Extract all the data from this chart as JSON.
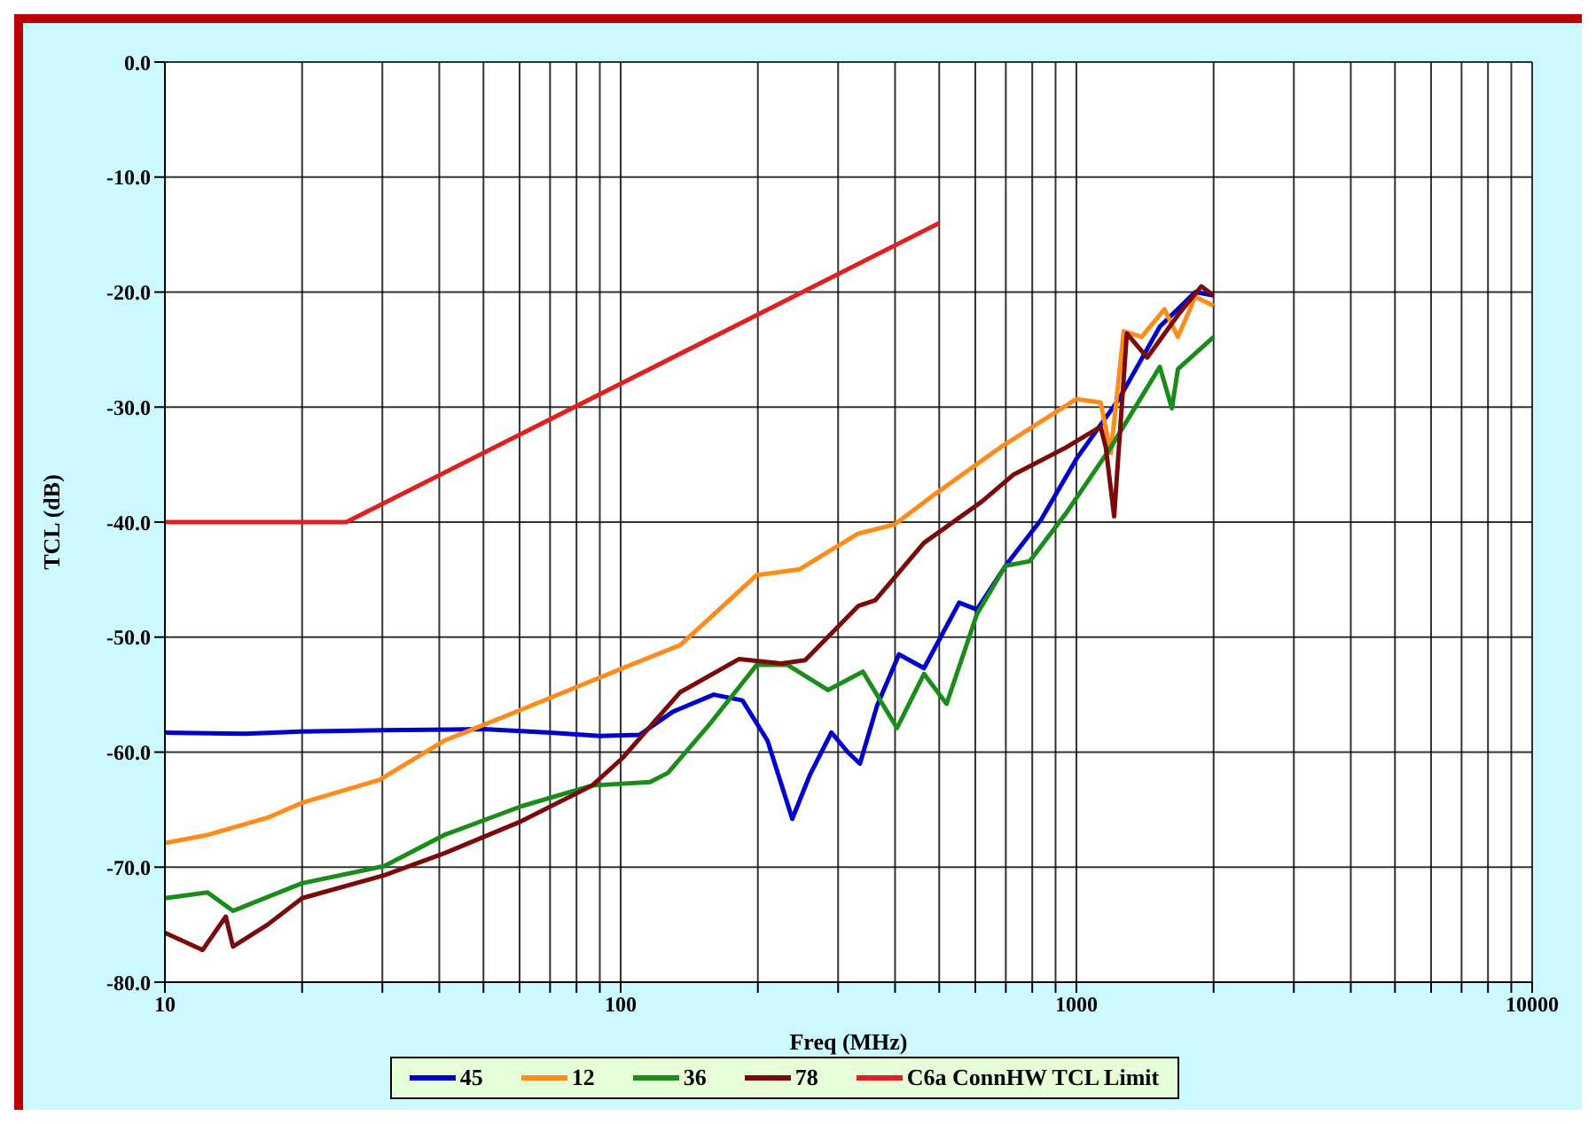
{
  "chart_data": {
    "type": "line",
    "xlabel": "Freq (MHz)",
    "ylabel": "TCL (dB)",
    "log": "x",
    "grid": true,
    "legend": "bottom",
    "marker": "none",
    "line_style": "solid",
    "xlim": [
      10,
      10000
    ],
    "xticks": [
      10,
      {
        "value": 20,
        "label": null
      },
      {
        "value": 30,
        "label": null
      },
      {
        "value": 40,
        "label": null
      },
      {
        "value": 50,
        "label": null
      },
      {
        "value": 60,
        "label": null
      },
      {
        "value": 70,
        "label": null
      },
      {
        "value": 80,
        "label": null
      },
      {
        "value": 90,
        "label": null
      },
      100,
      {
        "value": 200,
        "label": null
      },
      {
        "value": 300,
        "label": null
      },
      {
        "value": 400,
        "label": null
      },
      {
        "value": 500,
        "label": null
      },
      {
        "value": 600,
        "label": null
      },
      {
        "value": 700,
        "label": null
      },
      {
        "value": 800,
        "label": null
      },
      {
        "value": 900,
        "label": null
      },
      1000,
      {
        "value": 2000,
        "label": null
      },
      {
        "value": 3000,
        "label": null
      },
      {
        "value": 4000,
        "label": null
      },
      {
        "value": 5000,
        "label": null
      },
      {
        "value": 6000,
        "label": null
      },
      {
        "value": 7000,
        "label": null
      },
      {
        "value": 8000,
        "label": null
      },
      {
        "value": 9000,
        "label": null
      },
      10000
    ],
    "ylim": [
      -80,
      0
    ],
    "yticks": [
      {
        "value": -80,
        "label": "-80.0"
      },
      {
        "value": -70,
        "label": "-70.0"
      },
      {
        "value": -60,
        "label": "-60.0"
      },
      {
        "value": -50,
        "label": "-50.0"
      },
      {
        "value": -40,
        "label": "-40.0"
      },
      {
        "value": -30,
        "label": "-30.0"
      },
      {
        "value": -20,
        "label": "-20.0"
      },
      {
        "value": -10,
        "label": "-10.0"
      },
      {
        "value": 0,
        "label": "0.0"
      }
    ],
    "series": [
      {
        "name": "45",
        "color": "#0000cc",
        "x": [
          10,
          15,
          20,
          30,
          50,
          70,
          90,
          110,
          130,
          160,
          185,
          210,
          238,
          260,
          290,
          315,
          335,
          365,
          408,
          463,
          553,
          605,
          699,
          836,
          1000,
          1240,
          1524,
          1823,
          2000
        ],
        "values": [
          -58.3,
          -58.4,
          -58.2,
          -58.1,
          -58.0,
          -58.3,
          -58.6,
          -58.5,
          -56.5,
          -55,
          -55.5,
          -59,
          -65.8,
          -62,
          -58.3,
          -60,
          -61,
          -56,
          -51.5,
          -52.7,
          -47,
          -47.6,
          -43.8,
          -39.8,
          -34.5,
          -29.3,
          -23,
          -20,
          -20.3
        ]
      },
      {
        "name": "12",
        "color": "#ff8c1a",
        "x": [
          10,
          12.4,
          16.8,
          20,
          29.6,
          41,
          60.6,
          101,
          135,
          199,
          247,
          332,
          399,
          488,
          681,
          1000,
          1130,
          1190,
          1270,
          1390,
          1560,
          1670,
          1823,
          2000
        ],
        "values": [
          -67.9,
          -67.2,
          -65.7,
          -64.4,
          -62.4,
          -59,
          -56.3,
          -52.7,
          -50.7,
          -44.6,
          -44.1,
          -41,
          -40.2,
          -37.6,
          -33.5,
          -29.3,
          -29.6,
          -34,
          -23.4,
          -23.9,
          -21.5,
          -23.9,
          -20.4,
          -21.2
        ]
      },
      {
        "name": "36",
        "color": "#1a8c1a",
        "x": [
          10,
          12.4,
          14.1,
          20,
          30.3,
          41,
          60.6,
          86.6,
          116,
          127,
          158,
          199,
          232,
          285,
          340,
          404,
          463,
          519,
          605,
          699,
          790,
          950,
          1190,
          1524,
          1620,
          1670,
          2000
        ],
        "values": [
          -72.7,
          -72.2,
          -73.8,
          -71.4,
          -69.9,
          -67.2,
          -64.7,
          -62.9,
          -62.6,
          -61.8,
          -57.4,
          -52.4,
          -52.4,
          -54.6,
          -53,
          -57.9,
          -53.2,
          -55.8,
          -48,
          -43.8,
          -43.4,
          -39.2,
          -33.5,
          -26.5,
          -30.1,
          -26.7,
          -23.9
        ]
      },
      {
        "name": "78",
        "color": "#7a0a0a",
        "x": [
          10,
          12.1,
          13.6,
          14.1,
          16.8,
          20,
          30.3,
          41,
          60.6,
          86.6,
          101,
          135,
          182,
          225,
          254,
          332,
          362,
          463,
          621,
          726,
          950,
          1130,
          1160,
          1210,
          1290,
          1430,
          1670,
          1880,
          2000
        ],
        "values": [
          -75.7,
          -77.2,
          -74.3,
          -76.9,
          -75,
          -72.7,
          -70.7,
          -68.8,
          -66,
          -62.9,
          -60.5,
          -54.8,
          -51.9,
          -52.3,
          -52,
          -47.3,
          -46.8,
          -41.8,
          -38.2,
          -35.9,
          -33.5,
          -31.7,
          -33.5,
          -39.5,
          -23.6,
          -25.7,
          -22,
          -19.5,
          -20.3
        ]
      },
      {
        "name": "C6a ConnHW TCL Limit",
        "color": "#e02020",
        "x": [
          10,
          25,
          500
        ],
        "values": [
          -40,
          -40,
          -14
        ]
      }
    ]
  }
}
